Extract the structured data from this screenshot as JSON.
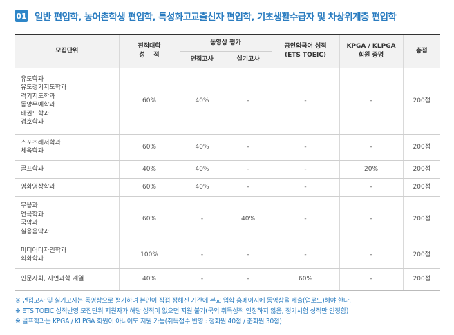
{
  "header": {
    "number": "01",
    "title": "일반 편입학, 농어촌학생 편입학, 특성화고교출신자 편입학, 기초생활수급자 및 차상위계층 편입학"
  },
  "table": {
    "headers": {
      "unit": "모집단위",
      "transcript_line1": "전적대학",
      "transcript_line2": "성    적",
      "video_eval": "동영상 평가",
      "interview": "면접고사",
      "practical": "실기고사",
      "english_line1": "공인외국어 성적",
      "english_line2": "(ETS TOEIC)",
      "kpga_line1": "KPGA / KLPGA",
      "kpga_line2": "회원 증명",
      "total": "총점"
    },
    "rows": [
      {
        "depts": [
          "유도학과",
          "유도경기지도학과",
          "격기지도학과",
          "동양무예학과",
          "태권도학과",
          "경호학과"
        ],
        "transcript": "60%",
        "interview": "40%",
        "practical": "-",
        "english": "-",
        "kpga": "-",
        "total": "200점"
      },
      {
        "depts": [
          "스포츠레저학과",
          "체육학과"
        ],
        "transcript": "60%",
        "interview": "40%",
        "practical": "-",
        "english": "-",
        "kpga": "-",
        "total": "200점"
      },
      {
        "depts": [
          "골프학과"
        ],
        "transcript": "40%",
        "interview": "40%",
        "practical": "-",
        "english": "-",
        "kpga": "20%",
        "total": "200점"
      },
      {
        "depts": [
          "영화영상학과"
        ],
        "transcript": "60%",
        "interview": "40%",
        "practical": "-",
        "english": "-",
        "kpga": "-",
        "total": "200점"
      },
      {
        "depts": [
          "무용과",
          "연극학과",
          "국악과",
          "실용음악과"
        ],
        "transcript": "60%",
        "interview": "-",
        "practical": "40%",
        "english": "-",
        "kpga": "-",
        "total": "200점"
      },
      {
        "depts": [
          "미디어디자인학과",
          "회화학과"
        ],
        "transcript": "100%",
        "interview": "-",
        "practical": "-",
        "english": "-",
        "kpga": "-",
        "total": "200점"
      },
      {
        "depts": [
          "인문사회, 자연과학 계열"
        ],
        "transcript": "40%",
        "interview": "-",
        "practical": "-",
        "english": "60%",
        "kpga": "-",
        "total": "200점"
      }
    ]
  },
  "notes": [
    "※ 면접고사 및 실기고사는 동영상으로 평가하며 본인이 직접 정해진 기간에 본교 입학 홈페이지에 동영상을 제출(업로드)해야 한다.",
    "※ ETS TOEIC 성적반영 모집단위 지원자가 해당 성적이 없으면 지원 불가(국외 취득성적 인정하지 않음, 정기시험 성적만 인정함)",
    "※ 골프학과는 KPGA / KLPGA 회원이 아니어도 지원 가능(취득점수 반영 : 정회원 40점 / 준회원 30점)"
  ]
}
